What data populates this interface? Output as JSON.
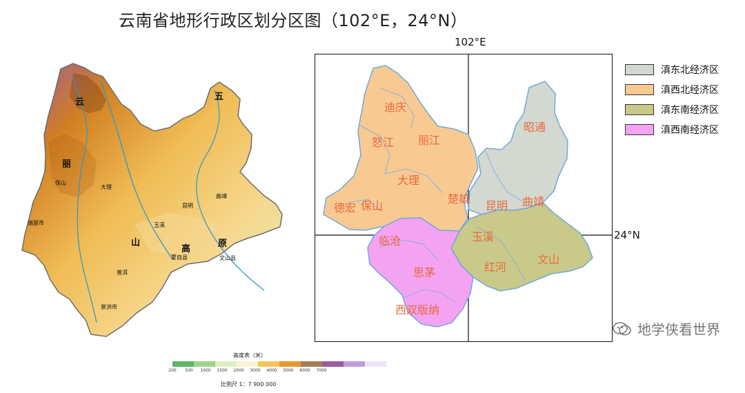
{
  "title": "云南省地形行政区划分区图（102°E，24°N）",
  "relief_map": {
    "labels": [
      "五",
      "云",
      "丽",
      "大理",
      "昆明",
      "曲靖",
      "文山县",
      "玉溪",
      "蒙自县",
      "瑞丽市",
      "保山",
      "普洱",
      "景洪市",
      "高",
      "原",
      "山"
    ],
    "legend": {
      "title": "高度表（米）",
      "scale": "比例尺  1：7 900 000",
      "ticks": [
        "200",
        "500",
        "1000",
        "1500",
        "2000",
        "3000",
        "4000",
        "5000",
        "6000",
        "7000"
      ],
      "colors": [
        "#5fb36b",
        "#9fd58d",
        "#dff0c2",
        "#fbf4d3",
        "#f4c45b",
        "#e39a2d",
        "#a67c57",
        "#9c5ba3",
        "#c09fd8",
        "#efe5f8"
      ]
    }
  },
  "region_map": {
    "longitude_label": "102°E",
    "latitude_label": "24°N",
    "regions": [
      {
        "name": "滇东北经济区",
        "color": "#d3d8d0"
      },
      {
        "name": "滇西北经济区",
        "color": "#f9c992"
      },
      {
        "name": "滇东南经济区",
        "color": "#c9c989"
      },
      {
        "name": "滇西南经济区",
        "color": "#f4a3f2"
      }
    ],
    "city_labels": [
      "迪庆",
      "怒江",
      "丽江",
      "大理",
      "保山",
      "德宏",
      "楚雄",
      "昭通",
      "昆明",
      "曲靖",
      "玉溪",
      "临沧",
      "思茅",
      "红河",
      "文山",
      "西双版纳"
    ]
  },
  "watermark": "地学侠看世界"
}
